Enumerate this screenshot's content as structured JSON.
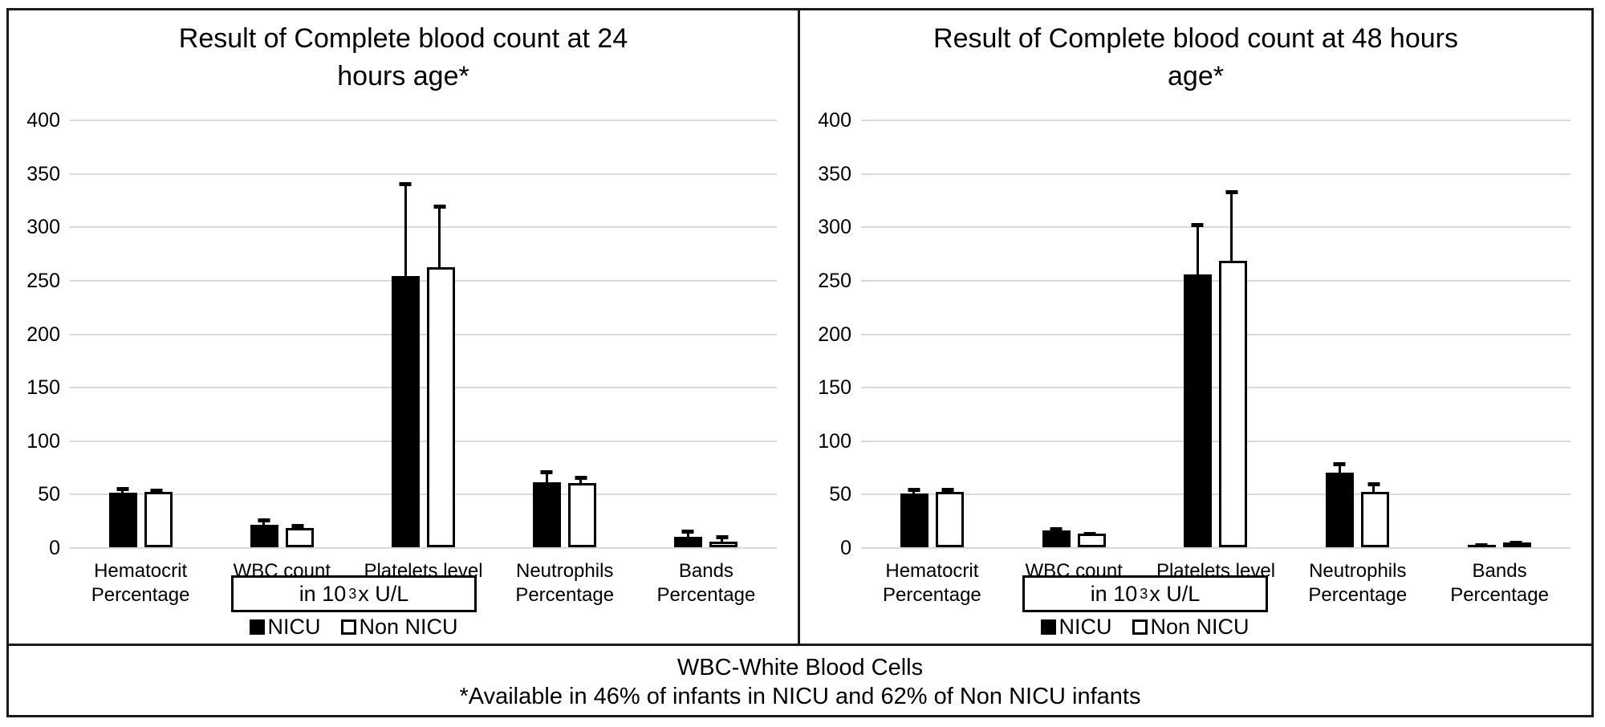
{
  "figure": {
    "unit_label": {
      "base": "in 10",
      "exp": "3",
      "rest": "x  U/L",
      "full_text": "in 10³x  U/L"
    },
    "legend": {
      "position": "bottom",
      "items": [
        {
          "label": "NICU",
          "marker": "filled-black-square"
        },
        {
          "label": "Non NICU",
          "marker": "open-white-square"
        }
      ]
    },
    "footer": {
      "line1": "WBC-White Blood Cells",
      "line2": "*Available in 46% of infants in NICU and 62% of Non NICU infants"
    },
    "colors": {
      "nicu_bar": "#000000",
      "non_nicu_bar": "#ffffff",
      "bar_outline": "#000000",
      "gridline": "#d9d9d9",
      "text": "#000000",
      "border": "#1a1a1a"
    }
  },
  "chart_data": [
    {
      "type": "bar",
      "title": "Result of Complete blood count at 24 hours age*",
      "title_lines": [
        "Result of Complete blood count at 24",
        "hours age*"
      ],
      "categories": [
        "Hematocrit Percentage",
        "WBC count",
        "Platelets level",
        "Neutrophils Percentage",
        "Bands Percentage"
      ],
      "category_label_lines": [
        [
          "Hematocrit",
          "Percentage"
        ],
        [
          "WBC count"
        ],
        [
          "Platelets level"
        ],
        [
          "Neutrophils",
          "Percentage"
        ],
        [
          "Bands Percentage"
        ]
      ],
      "series": [
        {
          "name": "NICU",
          "values": [
            51,
            21,
            254,
            61,
            10
          ],
          "errors_plus": [
            5,
            6,
            88,
            11,
            7
          ]
        },
        {
          "name": "Non NICU",
          "values": [
            52,
            18,
            262,
            60,
            5
          ],
          "errors_plus": [
            5,
            6,
            61,
            9,
            8
          ]
        }
      ],
      "ylim": [
        0,
        400
      ],
      "y_ticks": [
        400,
        350,
        300,
        250,
        200,
        150,
        100,
        50,
        0
      ],
      "grid": "horizontal",
      "xlabel": "",
      "ylabel": "",
      "legend_position": "bottom",
      "error_bars": "upper-only"
    },
    {
      "type": "bar",
      "title": "Result of Complete blood count at 48 hours age*",
      "title_lines": [
        "Result of Complete blood count at 48 hours",
        "age*"
      ],
      "categories": [
        "Hematocrit Percentage",
        "WBC count",
        "Platelets level",
        "Neutrophils Percentage",
        "Bands Percentage"
      ],
      "category_label_lines": [
        [
          "Hematocrit",
          "Percentage"
        ],
        [
          "WBC count"
        ],
        [
          "Platelets level"
        ],
        [
          "Neutrophils",
          "Percentage"
        ],
        [
          "Bands Percentage"
        ]
      ],
      "series": [
        {
          "name": "NICU",
          "values": [
            50,
            16,
            255,
            70,
            2
          ],
          "errors_plus": [
            5,
            3,
            48,
            10,
            1.5
          ]
        },
        {
          "name": "Non NICU",
          "values": [
            52,
            13,
            268,
            52,
            4
          ],
          "errors_plus": [
            6,
            4,
            68,
            11,
            4
          ]
        }
      ],
      "ylim": [
        0,
        400
      ],
      "y_ticks": [
        400,
        350,
        300,
        250,
        200,
        150,
        100,
        50,
        0
      ],
      "grid": "horizontal",
      "xlabel": "",
      "ylabel": "",
      "legend_position": "bottom",
      "error_bars": "upper-only"
    }
  ]
}
